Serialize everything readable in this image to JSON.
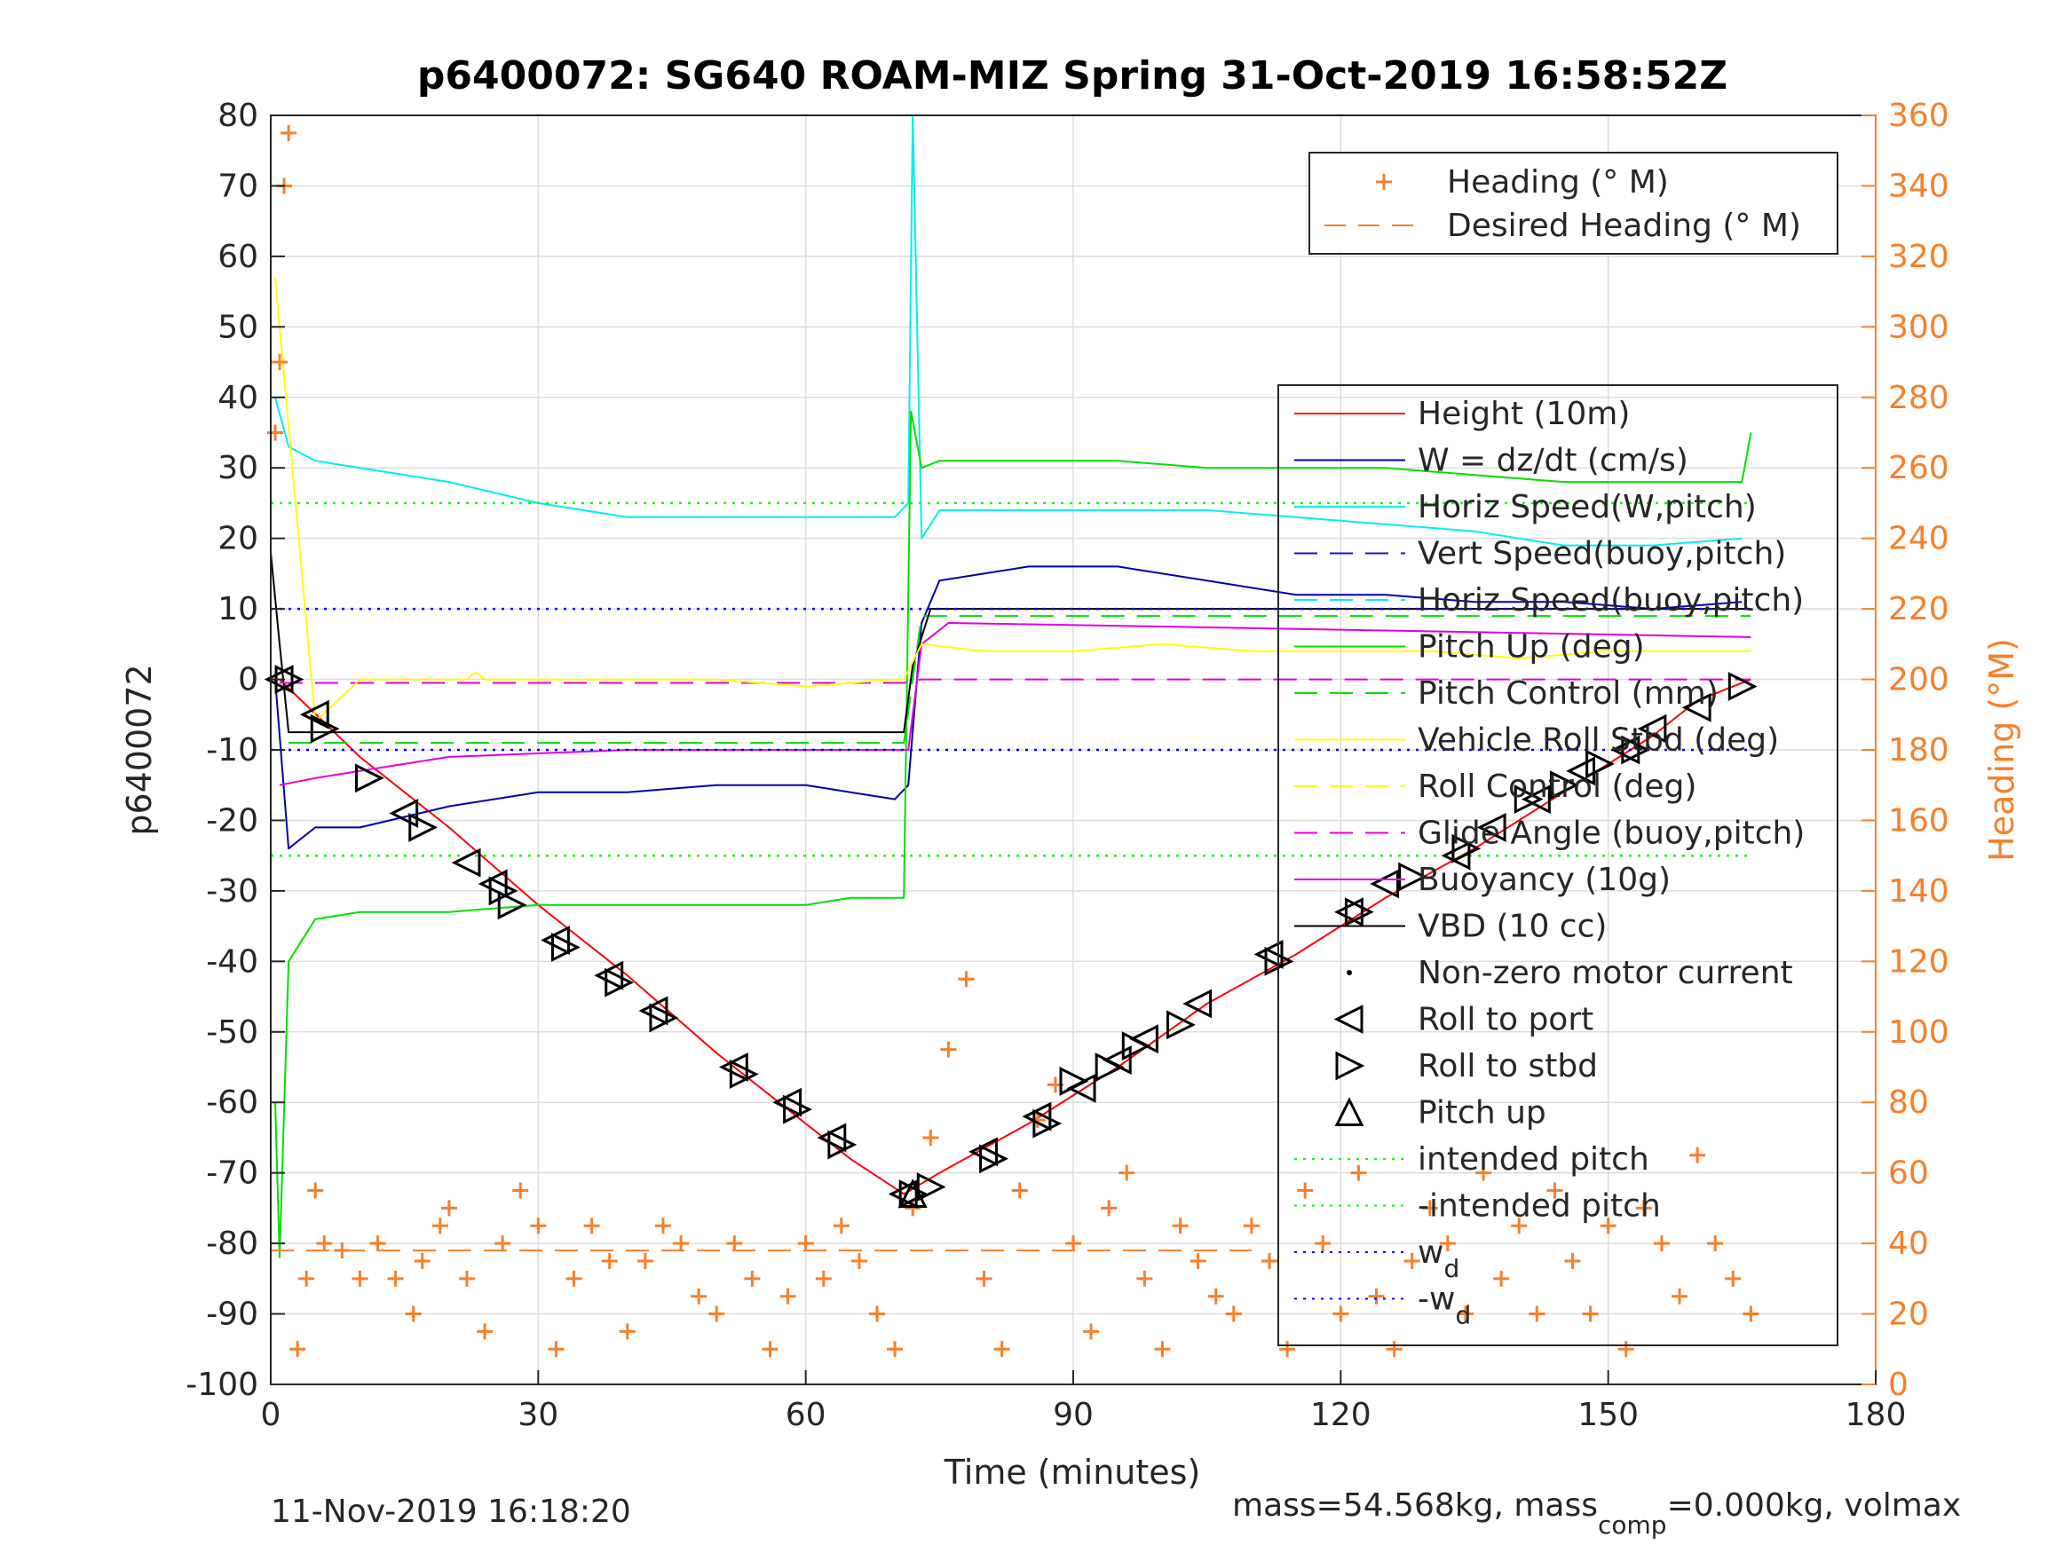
{
  "chart_data": {
    "type": "line",
    "title": "p6400072: SG640 ROAM-MIZ Spring 31-Oct-2019 16:58:52Z",
    "xlabel": "Time (minutes)",
    "ylabel_left": "p6400072",
    "ylabel_right": "Heading (°M)",
    "xlim": [
      0,
      180
    ],
    "ylim_left": [
      -100,
      80
    ],
    "ylim_right": [
      0,
      360
    ],
    "x_ticks": [
      "0",
      "30",
      "60",
      "90",
      "120",
      "150",
      "180"
    ],
    "y_ticks_left": [
      "80",
      "70",
      "60",
      "50",
      "40",
      "30",
      "20",
      "10",
      "0",
      "-10",
      "-20",
      "-30",
      "-40",
      "-50",
      "-60",
      "-70",
      "-80",
      "-90",
      "-100"
    ],
    "y_ticks_right": [
      "360",
      "340",
      "320",
      "300",
      "280",
      "260",
      "240",
      "220",
      "200",
      "180",
      "160",
      "140",
      "120",
      "100",
      "80",
      "60",
      "40",
      "20",
      "0"
    ],
    "grid": true,
    "footer_left": "11-Nov-2019 16:18:20",
    "footer_right_prefix": "mass=54.568kg, mass",
    "footer_right_sub": "comp",
    "footer_right_suffix": "=0.000kg, volmax",
    "colors": {
      "heading": "#f77f2a",
      "height": "#ff0000",
      "w": "#0000aa",
      "horiz_speed": "#00eeee",
      "vert_speed_buoy": "#1010cc",
      "pitch": "#00e000",
      "roll": "#ffff00",
      "glide": "#e000e0",
      "buoyancy": "#e000e0",
      "vbd": "#000000",
      "wd": "#0000ff",
      "intended_pitch": "#00ff00"
    },
    "legend_right_axis": [
      {
        "name": "Heading (° M)",
        "marker": "+"
      },
      {
        "name": "Desired Heading (° M)",
        "style": "dashed"
      }
    ],
    "legend_main": [
      {
        "name": "Height (10m)"
      },
      {
        "name": "W = dz/dt (cm/s)"
      },
      {
        "name": "Horiz Speed(W,pitch)"
      },
      {
        "name": "Vert Speed(buoy,pitch)"
      },
      {
        "name": "Horiz Speed(buoy,pitch)"
      },
      {
        "name": "Pitch Up (deg)"
      },
      {
        "name": "Pitch Control (mm)"
      },
      {
        "name": "Vehicle Roll Stbd (deg)"
      },
      {
        "name": "Roll Control (deg)"
      },
      {
        "name": "Glide Angle (buoy,pitch)"
      },
      {
        "name": "Buoyancy (10g)"
      },
      {
        "name": "VBD (10 cc)"
      },
      {
        "name": "Non-zero motor current"
      },
      {
        "name": "Roll to port"
      },
      {
        "name": "Roll to stbd"
      },
      {
        "name": "Pitch up"
      },
      {
        "name": "intended pitch"
      },
      {
        "name": "-intended pitch"
      },
      {
        "name": "w",
        "sub": "d"
      },
      {
        "name": "-w",
        "sub": "d"
      }
    ],
    "series": [
      {
        "name": "Height (10m)",
        "x": [
          0,
          1,
          10,
          20,
          30,
          40,
          50,
          60,
          65,
          71,
          75,
          85,
          95,
          105,
          115,
          125,
          135,
          145,
          155,
          160,
          166
        ],
        "y": [
          0,
          0,
          -11,
          -21,
          -32,
          -42,
          -53,
          -63,
          -68,
          -73,
          -70,
          -63,
          -55,
          -46,
          -39,
          -31,
          -24,
          -16,
          -8,
          -3,
          0
        ]
      },
      {
        "name": "W = dz/dt (cm/s)",
        "x": [
          0.5,
          2,
          5,
          10,
          20,
          30,
          40,
          50,
          60,
          65,
          70,
          71.5,
          73,
          75,
          85,
          95,
          105,
          115,
          125,
          135,
          145,
          155,
          165
        ],
        "y": [
          0,
          -24,
          -21,
          -21,
          -18,
          -16,
          -16,
          -15,
          -15,
          -16,
          -17,
          -15,
          8,
          14,
          16,
          16,
          14,
          12,
          12,
          11,
          11,
          10,
          11
        ]
      },
      {
        "name": "Horiz Speed(W,pitch)",
        "x": [
          0.5,
          2,
          5,
          10,
          20,
          30,
          40,
          50,
          60,
          65,
          70,
          71.5,
          72,
          73,
          75,
          85,
          95,
          105,
          115,
          125,
          135,
          145,
          155,
          165
        ],
        "y": [
          40,
          33,
          31,
          30,
          28,
          25,
          23,
          23,
          23,
          23,
          23,
          25,
          80,
          20,
          24,
          24,
          24,
          24,
          23,
          22,
          21,
          19,
          19,
          20
        ]
      },
      {
        "name": "Pitch Up (deg)",
        "x": [
          0.5,
          1,
          2,
          5,
          10,
          20,
          30,
          40,
          50,
          60,
          65,
          71,
          71.8,
          73,
          75,
          85,
          95,
          105,
          115,
          125,
          135,
          145,
          155,
          165,
          166
        ],
        "y": [
          -60,
          -82,
          -40,
          -34,
          -33,
          -33,
          -32,
          -32,
          -32,
          -32,
          -31,
          -31,
          38,
          30,
          31,
          31,
          31,
          30,
          30,
          30,
          29,
          28,
          28,
          28,
          35
        ]
      },
      {
        "name": "Pitch Control (mm)",
        "x": [
          2,
          71,
          73,
          166
        ],
        "y": [
          -9,
          -9,
          9,
          9
        ]
      },
      {
        "name": "Buoyancy (10g)",
        "x": [
          1,
          5,
          10,
          20,
          40,
          70,
          71.5,
          73,
          76,
          100,
          166
        ],
        "y": [
          -15,
          -14,
          -13,
          -11,
          -10,
          -10,
          -10,
          5,
          8,
          7.5,
          6
        ]
      },
      {
        "name": "VBD (10 cc)",
        "x": [
          0,
          1,
          2,
          71,
          72,
          74,
          166
        ],
        "y": [
          18,
          5,
          -7.5,
          -7.5,
          2,
          10,
          10
        ]
      },
      {
        "name": "Glide Angle (buoy,pitch)",
        "x": [
          1,
          71,
          73,
          166
        ],
        "y": [
          -0.5,
          -0.5,
          0,
          0
        ]
      },
      {
        "name": "Vehicle Roll Stbd (deg)",
        "x": [
          0.5,
          5,
          10,
          20,
          22,
          23,
          24,
          30,
          40,
          50,
          60,
          70,
          71,
          73,
          80,
          90,
          100,
          110,
          120,
          130,
          140,
          150,
          160,
          166
        ],
        "y": [
          57,
          -6,
          0,
          0,
          0,
          1,
          0,
          0,
          0,
          0,
          -1,
          0,
          0,
          5,
          4,
          4,
          5,
          4,
          4,
          4,
          3,
          4,
          4,
          4
        ]
      },
      {
        "name": "Desired Heading (° M)",
        "x": [
          0,
          110
        ],
        "y": [
          38,
          38
        ]
      },
      {
        "name": "intended pitch",
        "x": [
          0,
          166
        ],
        "y": [
          25,
          25
        ]
      },
      {
        "name": "-intended pitch",
        "x": [
          0,
          166
        ],
        "y": [
          -25,
          -25
        ]
      },
      {
        "name": "w_d",
        "x": [
          0,
          166
        ],
        "y": [
          10,
          10
        ]
      },
      {
        "name": "-w_d",
        "x": [
          0,
          166
        ],
        "y": [
          -10,
          -10
        ]
      },
      {
        "name": "Heading (° M)",
        "axis": "right",
        "x": [
          0.5,
          1,
          1.5,
          2,
          3,
          4,
          5,
          6,
          8,
          10,
          12,
          14,
          16,
          17,
          19,
          20,
          22,
          24,
          26,
          28,
          30,
          32,
          34,
          36,
          38,
          40,
          42,
          44,
          46,
          48,
          50,
          52,
          54,
          56,
          58,
          60,
          62,
          64,
          66,
          68,
          70,
          72,
          74,
          76,
          78,
          80,
          82,
          84,
          86,
          88,
          90,
          92,
          94,
          96,
          98,
          100,
          102,
          104,
          106,
          108,
          110,
          112,
          114,
          116,
          118,
          120,
          122,
          124,
          126,
          128,
          130,
          132,
          134,
          136,
          138,
          140,
          142,
          144,
          146,
          148,
          150,
          152,
          154,
          156,
          158,
          160,
          162,
          164,
          166
        ],
        "y": [
          270,
          290,
          340,
          355,
          10,
          30,
          55,
          40,
          38,
          30,
          40,
          30,
          20,
          35,
          45,
          50,
          30,
          15,
          40,
          55,
          45,
          10,
          30,
          45,
          35,
          15,
          35,
          45,
          40,
          25,
          20,
          40,
          30,
          10,
          25,
          40,
          30,
          45,
          35,
          20,
          10,
          50,
          70,
          95,
          115,
          30,
          10,
          55,
          75,
          85,
          40,
          15,
          50,
          60,
          30,
          10,
          45,
          35,
          25,
          20,
          45,
          35,
          10,
          55,
          40,
          20,
          60,
          25,
          10,
          35,
          50,
          40,
          20,
          60,
          30,
          45,
          20,
          55,
          35,
          20,
          45,
          10,
          50,
          40,
          25,
          65,
          40,
          30,
          20
        ]
      }
    ],
    "markers_roll_port": {
      "x": [
        1,
        5,
        15,
        22,
        25,
        32,
        38,
        43,
        52,
        58,
        63,
        71,
        80,
        86,
        91,
        95,
        98,
        104,
        112,
        121,
        125,
        133,
        137,
        142,
        147,
        152,
        155,
        160
      ],
      "y": [
        0,
        -5,
        -19,
        -26,
        -29,
        -37,
        -42,
        -47,
        -55,
        -60,
        -65,
        -73,
        -67,
        -62,
        -58,
        -54,
        -51,
        -46,
        -39,
        -33,
        -29,
        -25,
        -21,
        -17,
        -13,
        -10,
        -7,
        -4
      ]
    },
    "markers_roll_stbd": {
      "x": [
        2,
        6,
        11,
        17,
        26,
        27,
        33,
        39,
        44,
        53,
        59,
        64,
        72,
        74,
        81,
        87,
        90,
        94,
        97,
        102,
        113,
        122,
        128,
        134,
        141,
        145,
        149,
        153,
        165
      ],
      "y": [
        0,
        -7,
        -14,
        -21,
        -30,
        -32,
        -38,
        -43,
        -48,
        -56,
        -61,
        -66,
        -73,
        -72,
        -68,
        -63,
        -57,
        -55,
        -52,
        -49,
        -40,
        -33,
        -28,
        -24,
        -17,
        -15,
        -12,
        -10,
        -1
      ]
    },
    "markers_pitch_up": {
      "x": [
        72
      ],
      "y": [
        -73
      ]
    }
  }
}
